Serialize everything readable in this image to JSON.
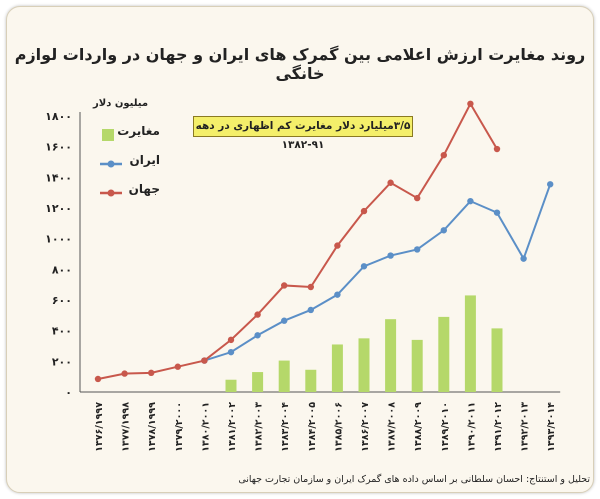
{
  "chart_data": {
    "type": "line",
    "title": "روند مغایرت ارزش اعلامی بین گمرک های ایران و جهان در واردات لوازم خانگی",
    "ylabel": "میلیون دلار",
    "ylim": [
      0,
      1800
    ],
    "yticks": [
      "۰",
      "۲۰۰",
      "۴۰۰",
      "۶۰۰",
      "۸۰۰",
      "۱۰۰۰",
      "۱۲۰۰",
      "۱۴۰۰",
      "۱۶۰۰",
      "۱۸۰۰"
    ],
    "ytick_values": [
      0,
      200,
      400,
      600,
      800,
      1000,
      1200,
      1400,
      1600,
      1800
    ],
    "categories": [
      "۱۳۷۶/۱۹۹۷",
      "۱۳۷۷/۱۹۹۸",
      "۱۳۷۸/۱۹۹۹",
      "۱۳۷۹/۲۰۰۰",
      "۱۳۸۰/۲۰۰۱",
      "۱۳۸۱/۲۰۰۲",
      "۱۳۸۲/۲۰۰۳",
      "۱۳۸۳/۲۰۰۴",
      "۱۳۸۴/۲۰۰۵",
      "۱۳۸۵/۲۰۰۶",
      "۱۳۸۶/۲۰۰۷",
      "۱۳۸۷/۲۰۰۸",
      "۱۳۸۸/۲۰۰۹",
      "۱۳۸۹/۲۰۱۰",
      "۱۳۹۰/۲۰۱۱",
      "۱۳۹۱/۲۰۱۲",
      "۱۳۹۲/۲۰۱۳",
      "۱۳۹۳/۲۰۱۴"
    ],
    "series": [
      {
        "name": "مغایرت",
        "kind": "bar",
        "color": "#b5d86a",
        "values": [
          null,
          null,
          null,
          null,
          null,
          80,
          130,
          205,
          145,
          310,
          350,
          475,
          340,
          490,
          630,
          415,
          null,
          null
        ]
      },
      {
        "name": "ایران",
        "kind": "line",
        "color": "#5b8fc7",
        "values": [
          null,
          null,
          null,
          null,
          205,
          260,
          370,
          465,
          535,
          635,
          820,
          890,
          930,
          1055,
          1245,
          1170,
          870,
          1355
        ]
      },
      {
        "name": "جهان",
        "kind": "line",
        "color": "#c8584c",
        "values": [
          85,
          120,
          125,
          165,
          205,
          340,
          505,
          695,
          685,
          955,
          1180,
          1365,
          1265,
          1545,
          1880,
          1585,
          null,
          null
        ]
      }
    ],
    "annotation": "۳/۵میلیارد دلار مغایرت کم اظهاری در دهه ۹۱-۱۳۸۲",
    "legend_position": "top-left"
  },
  "legend": {
    "gap_label": "مغایرت",
    "iran_label": "ایران",
    "world_label": "جهان"
  },
  "footer": "تحلیل و استنتاج: احسان سلطانی بر اساس داده های گمرک ایران و سازمان تجارت جهانی"
}
